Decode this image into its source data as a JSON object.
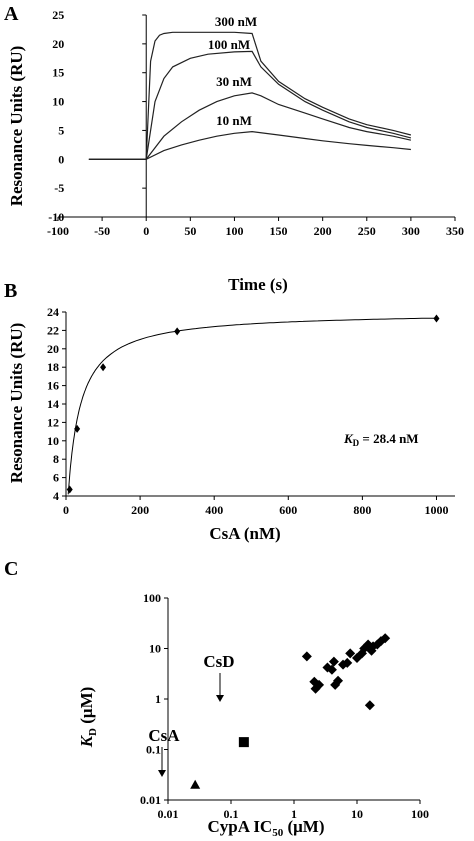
{
  "panels": {
    "A": {
      "letter": "A",
      "chart_data": {
        "type": "line",
        "xlabel": "Time (s)",
        "ylabel": "Resonance Units (RU)",
        "xlim": [
          -100,
          350
        ],
        "ylim": [
          -10,
          25
        ],
        "xticks": [
          -100,
          -50,
          0,
          50,
          100,
          150,
          200,
          250,
          300,
          350
        ],
        "yticks": [
          -10,
          -5,
          0,
          5,
          10,
          15,
          20,
          25
        ],
        "series": [
          {
            "name": "300 nM",
            "x": [
              -65,
              0,
              5,
              10,
              15,
              20,
              30,
              50,
              70,
              100,
              120,
              130,
              150,
              180,
              200,
              230,
              250,
              280,
              300
            ],
            "y": [
              0,
              0,
              17,
              20.5,
              21.5,
              21.8,
              22,
              22,
              22,
              22,
              21.8,
              17,
              13.5,
              10.5,
              9,
              7,
              6,
              5,
              4.2
            ]
          },
          {
            "name": "100 nM",
            "x": [
              -65,
              0,
              10,
              20,
              30,
              50,
              70,
              100,
              120,
              130,
              150,
              180,
              200,
              230,
              250,
              280,
              300
            ],
            "y": [
              0,
              0,
              10,
              14,
              16,
              17.5,
              18.2,
              18.6,
              18.7,
              16,
              13,
              10,
              8.5,
              6.5,
              5.5,
              4.5,
              3.7
            ]
          },
          {
            "name": "30 nM",
            "x": [
              -65,
              0,
              20,
              40,
              60,
              80,
              100,
              120,
              130,
              150,
              180,
              200,
              230,
              250,
              280,
              300
            ],
            "y": [
              0,
              0,
              4,
              6.5,
              8.5,
              10,
              11,
              11.5,
              11,
              9.5,
              8,
              7,
              5.5,
              4.8,
              4,
              3.3
            ]
          },
          {
            "name": "10 nM",
            "x": [
              -65,
              0,
              20,
              40,
              60,
              80,
              100,
              120,
              150,
              180,
              200,
              230,
              250,
              280,
              300
            ],
            "y": [
              0,
              0,
              1.5,
              2.5,
              3.3,
              4,
              4.5,
              4.8,
              4.2,
              3.6,
              3.2,
              2.7,
              2.4,
              2,
              1.7
            ]
          }
        ]
      }
    },
    "B": {
      "letter": "B",
      "annotation": {
        "k": "K",
        "sub": "D",
        "value": " = 28.4 nM"
      },
      "chart_data": {
        "type": "scatter",
        "xlabel": "CsA (nM)",
        "ylabel": "Resonance Units (RU)",
        "xlim": [
          0,
          1050
        ],
        "ylim": [
          4,
          24
        ],
        "xticks": [
          0,
          200,
          400,
          600,
          800,
          1000
        ],
        "yticks": [
          4,
          6,
          8,
          10,
          12,
          14,
          16,
          18,
          20,
          22,
          24
        ],
        "points": [
          {
            "x": 10,
            "y": 4.7
          },
          {
            "x": 30,
            "y": 11.3
          },
          {
            "x": 100,
            "y": 18
          },
          {
            "x": 300,
            "y": 21.9
          },
          {
            "x": 1000,
            "y": 23.3
          }
        ],
        "fit": {
          "model": "langmuir",
          "Rmax": 24,
          "KD": 28.4
        }
      }
    },
    "C": {
      "letter": "C",
      "chart_data": {
        "type": "scatter",
        "xlabel_main": "CypA IC",
        "xlabel_sub": "50",
        "xlabel_tail": " (μM)",
        "ylabel_main": "K",
        "ylabel_sub": "D",
        "ylabel_tail": " (μM)",
        "x_scale": "log",
        "y_scale": "log",
        "xlim": [
          0.01,
          100
        ],
        "ylim": [
          0.01,
          100
        ],
        "xticks": [
          0.01,
          0.1,
          1,
          10,
          100
        ],
        "xtick_labels": [
          "0.01",
          "0.1",
          "1",
          "10",
          "100"
        ],
        "yticks": [
          0.01,
          0.1,
          1,
          10,
          100
        ],
        "ytick_labels": [
          "0.01",
          "0.1",
          "1",
          "10",
          "100"
        ],
        "labels": {
          "csa": "CsA",
          "csd": "CsD"
        },
        "points_csa": [
          {
            "x": 0.027,
            "y": 0.02
          }
        ],
        "points_csd": [
          {
            "x": 0.16,
            "y": 0.14
          }
        ],
        "points_other": [
          {
            "x": 1.6,
            "y": 7.0
          },
          {
            "x": 2.1,
            "y": 2.2
          },
          {
            "x": 2.2,
            "y": 1.6
          },
          {
            "x": 2.5,
            "y": 1.9
          },
          {
            "x": 3.4,
            "y": 4.2
          },
          {
            "x": 4.0,
            "y": 3.8
          },
          {
            "x": 4.3,
            "y": 5.5
          },
          {
            "x": 4.5,
            "y": 1.9
          },
          {
            "x": 5.0,
            "y": 2.3
          },
          {
            "x": 6.0,
            "y": 4.8
          },
          {
            "x": 7.0,
            "y": 5.2
          },
          {
            "x": 7.8,
            "y": 8.0
          },
          {
            "x": 10.0,
            "y": 6.5
          },
          {
            "x": 12.0,
            "y": 8.0
          },
          {
            "x": 13.0,
            "y": 10.0
          },
          {
            "x": 15.0,
            "y": 12.0
          },
          {
            "x": 17.0,
            "y": 9.0
          },
          {
            "x": 18.0,
            "y": 11.0
          },
          {
            "x": 21.0,
            "y": 12.0
          },
          {
            "x": 24.0,
            "y": 14.0
          },
          {
            "x": 28.0,
            "y": 16.0
          },
          {
            "x": 16.0,
            "y": 0.75
          }
        ]
      }
    }
  }
}
